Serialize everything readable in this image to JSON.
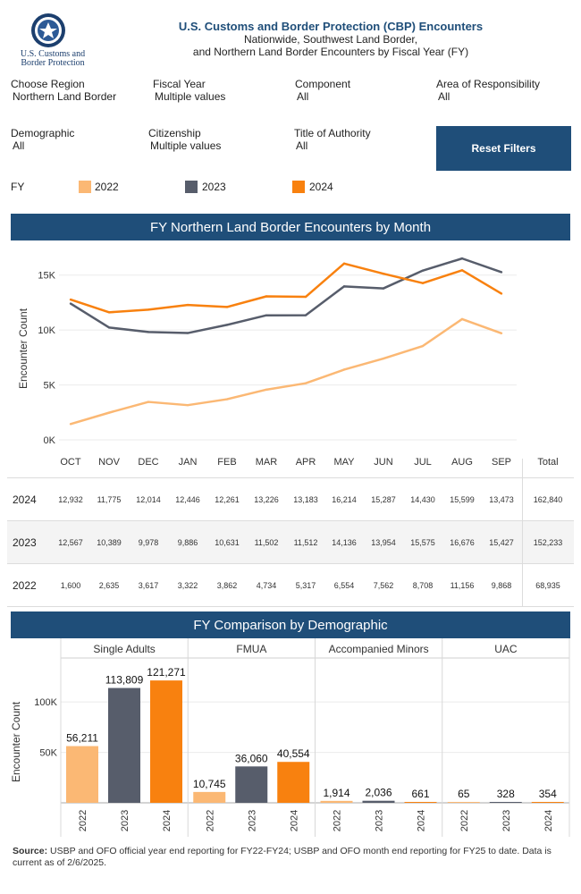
{
  "header": {
    "agency": "U.S. Customs and Border Protection",
    "title": "U.S. Customs and Border Protection (CBP) Encounters",
    "subtitle1": "Nationwide, Southwest Land Border,",
    "subtitle2": "and Northern Land Border Encounters by Fiscal Year (FY)"
  },
  "filters": [
    {
      "label": "Choose Region",
      "value": "Northern Land Border"
    },
    {
      "label": "Fiscal Year",
      "value": "Multiple values"
    },
    {
      "label": "Component",
      "value": "All"
    },
    {
      "label": "Area of Responsibility",
      "value": "All"
    },
    {
      "label": "Demographic",
      "value": "All"
    },
    {
      "label": "Citizenship",
      "value": "Multiple values"
    },
    {
      "label": "Title of Authority",
      "value": "All"
    }
  ],
  "reset_label": "Reset Filters",
  "legend": {
    "label": "FY",
    "items": [
      {
        "name": "2022",
        "color": "#fbb874"
      },
      {
        "name": "2023",
        "color": "#575d6b"
      },
      {
        "name": "2024",
        "color": "#f8810f"
      }
    ]
  },
  "chart1_banner": "FY Northern Land Border Encounters by Month",
  "chart2_banner": "FY Comparison by Demographic",
  "chart_data": [
    {
      "type": "line",
      "categories": [
        "OCT",
        "NOV",
        "DEC",
        "JAN",
        "FEB",
        "MAR",
        "APR",
        "MAY",
        "JUN",
        "JUL",
        "AUG",
        "SEP"
      ],
      "ylabel": "Encounter Count",
      "yticks": [
        "0K",
        "5K",
        "10K",
        "15K"
      ],
      "ylim": [
        0,
        17500
      ],
      "total_label": "Total",
      "series": [
        {
          "name": "2024",
          "color": "#f8810f",
          "values": [
            12932,
            11775,
            12014,
            12446,
            12261,
            13226,
            13183,
            16214,
            15287,
            14430,
            15599,
            13473
          ],
          "labels": [
            "12,932",
            "11,775",
            "12,014",
            "12,446",
            "12,261",
            "13,226",
            "13,183",
            "16,214",
            "15,287",
            "14,430",
            "15,599",
            "13,473"
          ],
          "total": "162,840"
        },
        {
          "name": "2023",
          "color": "#575d6b",
          "values": [
            12567,
            10389,
            9978,
            9886,
            10631,
            11502,
            11512,
            14136,
            13954,
            15575,
            16676,
            15427
          ],
          "labels": [
            "12,567",
            "10,389",
            "9,978",
            "9,886",
            "10,631",
            "11,502",
            "11,512",
            "14,136",
            "13,954",
            "15,575",
            "16,676",
            "15,427"
          ],
          "total": "152,233"
        },
        {
          "name": "2022",
          "color": "#fbb874",
          "values": [
            1600,
            2635,
            3617,
            3322,
            3862,
            4734,
            5317,
            6554,
            7562,
            8708,
            11156,
            9868
          ],
          "labels": [
            "1,600",
            "2,635",
            "3,617",
            "3,322",
            "3,862",
            "4,734",
            "5,317",
            "6,554",
            "7,562",
            "8,708",
            "11,156",
            "9,868"
          ],
          "total": "68,935"
        }
      ]
    },
    {
      "type": "bar",
      "ylabel": "Encounter Count",
      "yticks": [
        "50K",
        "100K"
      ],
      "ylim": [
        0,
        140000
      ],
      "groups": [
        {
          "name": "Single Adults",
          "years": [
            "2022",
            "2023",
            "2024"
          ],
          "values": [
            56211,
            113809,
            121271
          ],
          "labels": [
            "56,211",
            "113,809",
            "121,271"
          ]
        },
        {
          "name": "FMUA",
          "years": [
            "2022",
            "2023",
            "2024"
          ],
          "values": [
            10745,
            36060,
            40554
          ],
          "labels": [
            "10,745",
            "36,060",
            "40,554"
          ]
        },
        {
          "name": "Accompanied Minors",
          "years": [
            "2022",
            "2023",
            "2024"
          ],
          "values": [
            1914,
            2036,
            661
          ],
          "labels": [
            "1,914",
            "2,036",
            "661"
          ]
        },
        {
          "name": "UAC",
          "years": [
            "2022",
            "2023",
            "2024"
          ],
          "values": [
            65,
            328,
            354
          ],
          "labels": [
            "65",
            "328",
            "354"
          ]
        }
      ],
      "colors": [
        "#fbb874",
        "#575d6b",
        "#f8810f"
      ]
    }
  ],
  "source_bold": "Source:",
  "source_text": " USBP and OFO official year end reporting for FY22-FY24; USBP and OFO month end reporting for FY25 to date. Data is current as of 2/6/2025."
}
